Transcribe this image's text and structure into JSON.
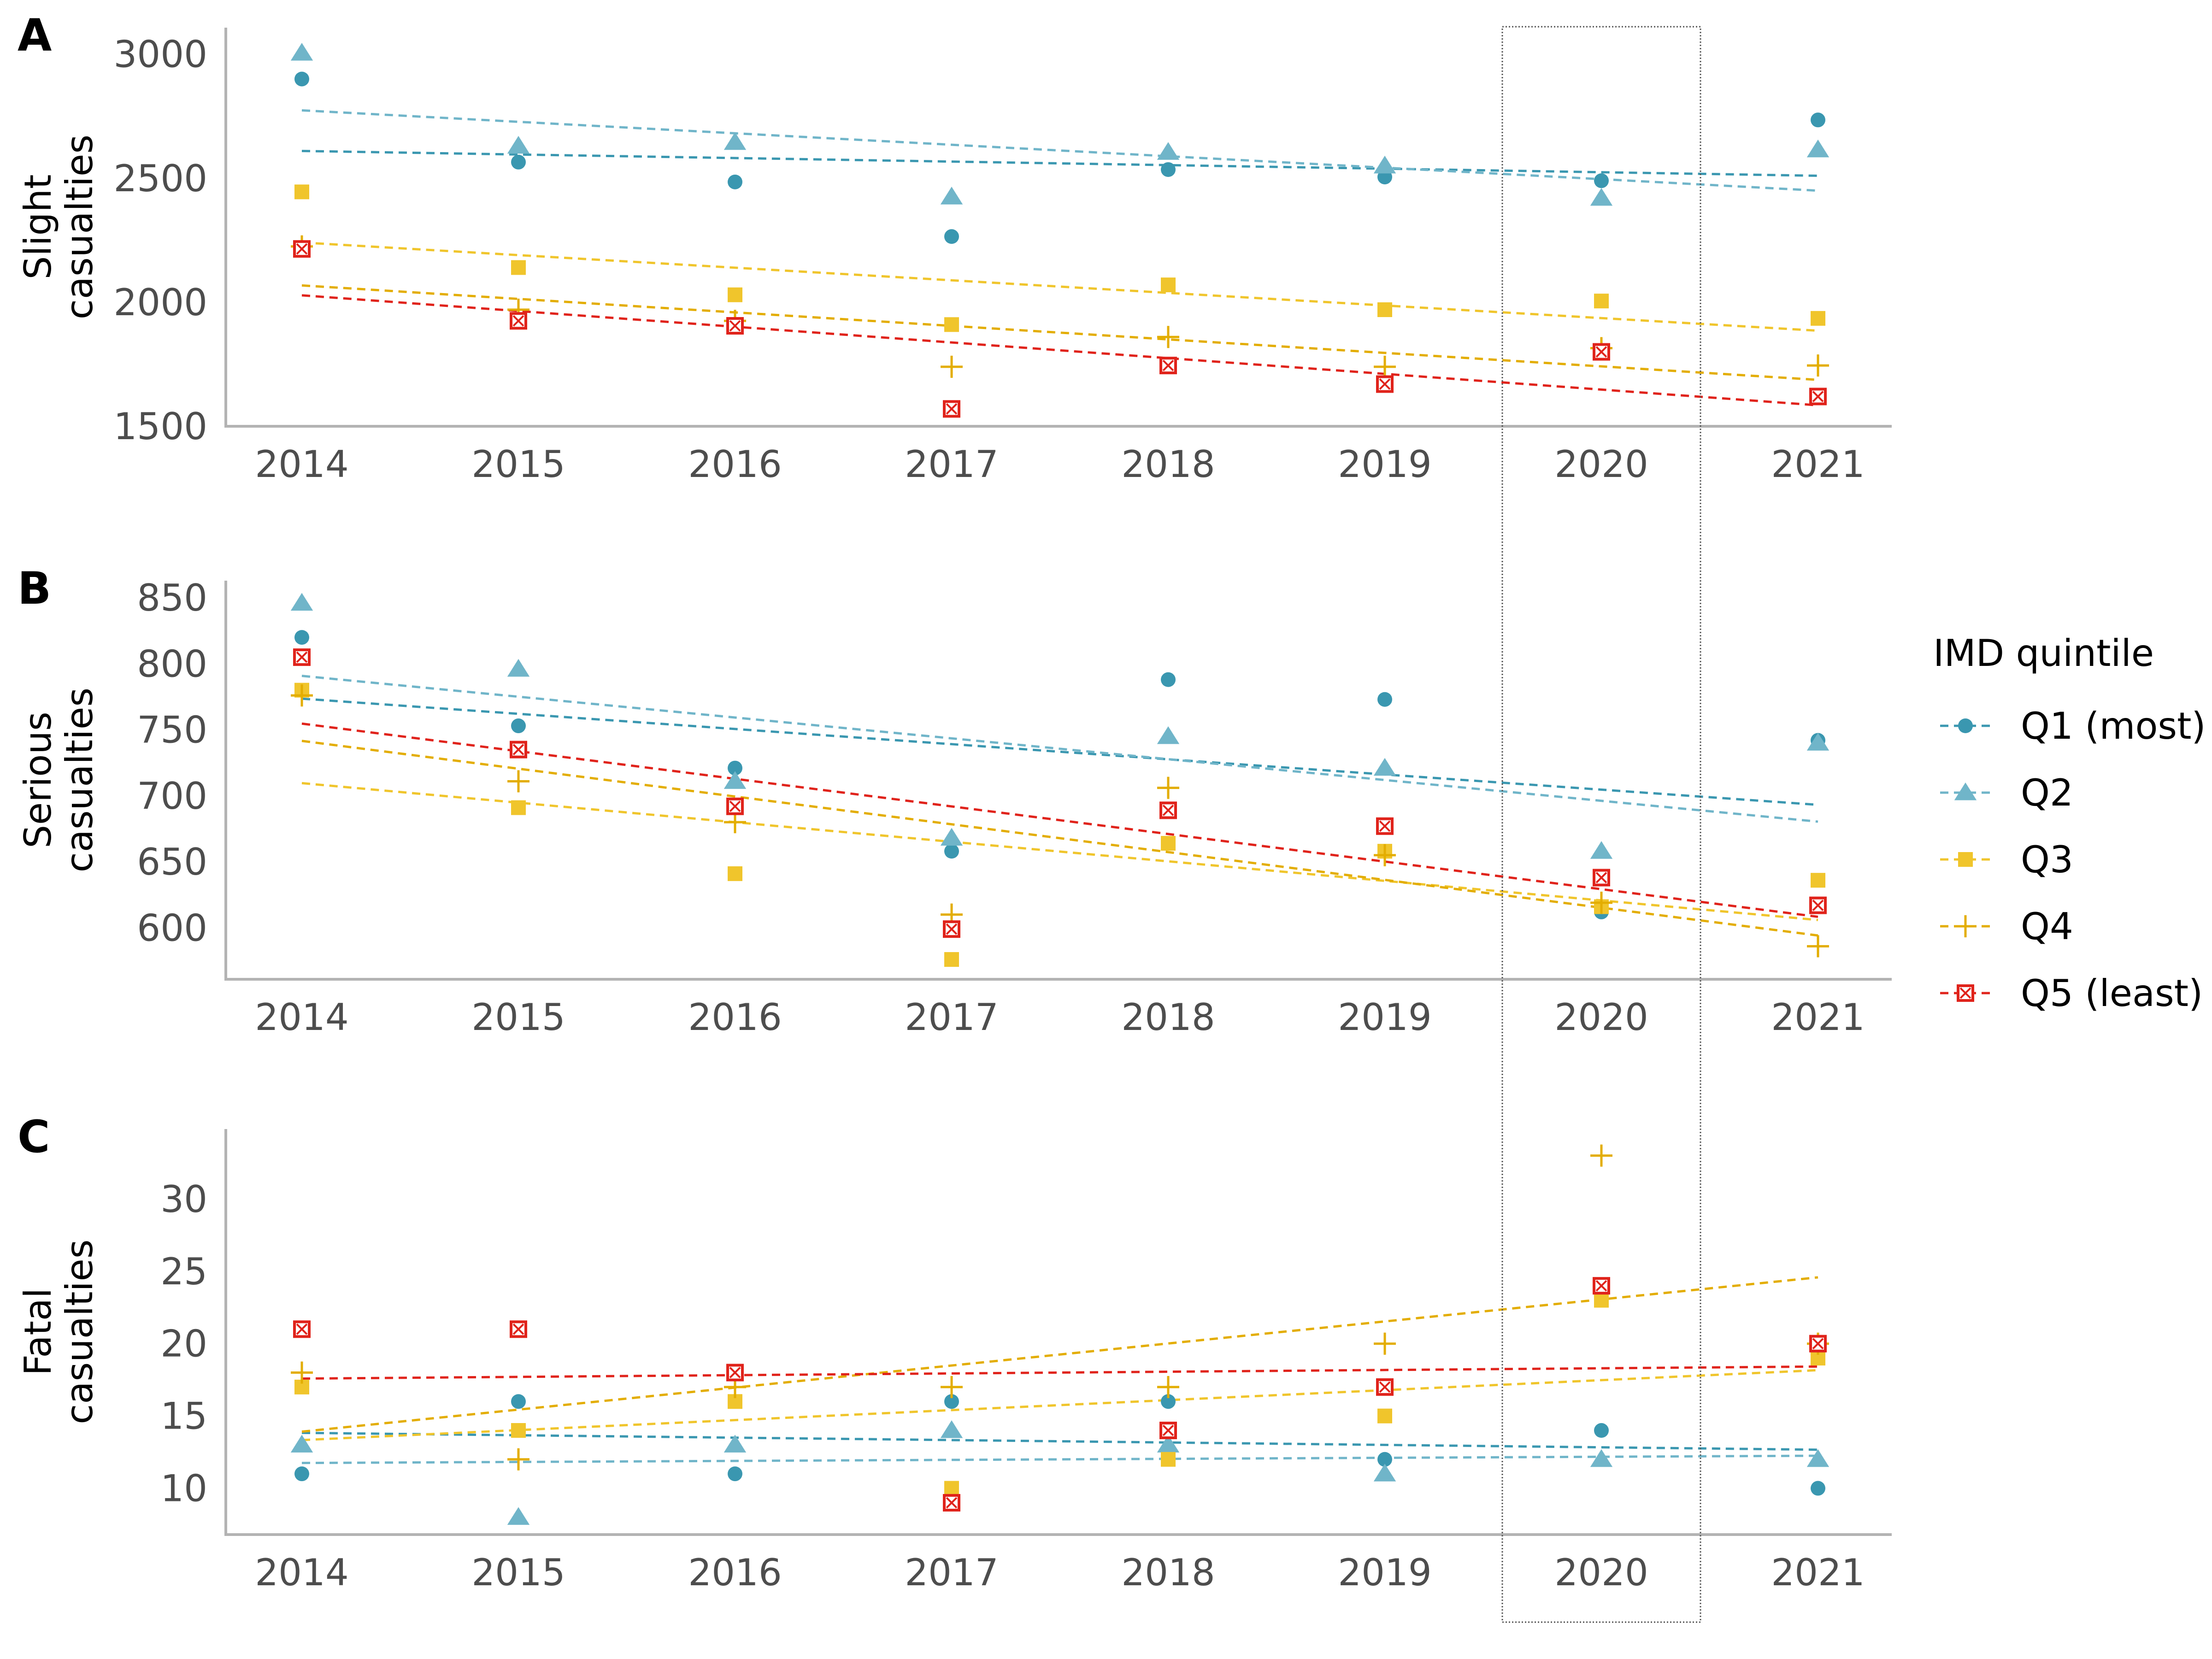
{
  "colors": {
    "Q1": "#3a97b0",
    "Q2": "#70b5c9",
    "Q3": "#f0c52c",
    "Q4": "#e3ad00",
    "Q5": "#e0231b",
    "axis": "#b3b3b3"
  },
  "legend": {
    "title": "IMD quintile",
    "placement": "right",
    "entries": [
      {
        "key": "Q1",
        "label": "Q1 (most)",
        "shape": "circle"
      },
      {
        "key": "Q2",
        "label": "Q2",
        "shape": "triangle"
      },
      {
        "key": "Q3",
        "label": "Q3",
        "shape": "square"
      },
      {
        "key": "Q4",
        "label": "Q4",
        "shape": "plus"
      },
      {
        "key": "Q5",
        "label": "Q5 (least)",
        "shape": "boxed-x"
      }
    ]
  },
  "highlight": {
    "year": 2020,
    "style": "dotted box spanning all panels"
  },
  "chart_data": [
    {
      "type": "scatter",
      "panel": "A",
      "ylabel": [
        "Slight",
        "casualties"
      ],
      "xticks": [
        "2014",
        "2015",
        "2016",
        "2017",
        "2018",
        "2019",
        "2020",
        "2021"
      ],
      "yticks": [
        "1500",
        "2000",
        "2500",
        "3000"
      ],
      "ylim": [
        1500,
        3070
      ],
      "x": [
        2014,
        2015,
        2016,
        2017,
        2018,
        2019,
        2020,
        2021
      ],
      "trendline": "linear, dashed",
      "series": [
        {
          "key": "Q1",
          "values": [
            2900,
            2565,
            2485,
            2265,
            2535,
            2505,
            2490,
            2735
          ]
        },
        {
          "key": "Q2",
          "values": [
            3005,
            2630,
            2645,
            2425,
            2605,
            2550,
            2420,
            2615
          ]
        },
        {
          "key": "Q3",
          "values": [
            2445,
            2140,
            2030,
            1910,
            2070,
            1970,
            2005,
            1935
          ]
        },
        {
          "key": "Q4",
          "values": [
            2225,
            1970,
            1925,
            1740,
            1860,
            1740,
            1815,
            1745
          ]
        },
        {
          "key": "Q5",
          "values": [
            2215,
            1925,
            1905,
            1570,
            1745,
            1670,
            1800,
            1620
          ]
        }
      ]
    },
    {
      "type": "scatter",
      "panel": "B",
      "ylabel": [
        "Serious",
        "casualties"
      ],
      "xticks": [
        "2014",
        "2015",
        "2016",
        "2017",
        "2018",
        "2019",
        "2020",
        "2021"
      ],
      "yticks": [
        "600",
        "650",
        "700",
        "750",
        "800",
        "850"
      ],
      "ylim": [
        561,
        856
      ],
      "x": [
        2014,
        2015,
        2016,
        2017,
        2018,
        2019,
        2020,
        2021
      ],
      "trendline": "linear, dashed",
      "series": [
        {
          "key": "Q1",
          "values": [
            820,
            753,
            721,
            658,
            788,
            773,
            612,
            742
          ]
        },
        {
          "key": "Q2",
          "values": [
            846,
            796,
            711,
            668,
            745,
            721,
            658,
            740
          ]
        },
        {
          "key": "Q3",
          "values": [
            780,
            691,
            641,
            576,
            664,
            658,
            616,
            636
          ]
        },
        {
          "key": "Q4",
          "values": [
            776,
            711,
            680,
            610,
            706,
            655,
            619,
            586
          ]
        },
        {
          "key": "Q5",
          "values": [
            805,
            735,
            692,
            599,
            689,
            677,
            638,
            617
          ]
        }
      ]
    },
    {
      "type": "scatter",
      "panel": "C",
      "ylabel": [
        "Fatal",
        "casualties"
      ],
      "xticks": [
        "2014",
        "2015",
        "2016",
        "2017",
        "2018",
        "2019",
        "2020",
        "2021"
      ],
      "yticks": [
        "10",
        "15",
        "20",
        "25",
        "30"
      ],
      "ylim": [
        6.8,
        34.2
      ],
      "x": [
        2014,
        2015,
        2016,
        2017,
        2018,
        2019,
        2020,
        2021
      ],
      "trendline": "linear, dashed",
      "series": [
        {
          "key": "Q1",
          "values": [
            11,
            16,
            11,
            16,
            16,
            12,
            14,
            10
          ]
        },
        {
          "key": "Q2",
          "values": [
            13,
            8,
            13,
            14,
            13,
            11,
            12,
            12
          ]
        },
        {
          "key": "Q3",
          "values": [
            17,
            14,
            16,
            10,
            12,
            15,
            23,
            19
          ]
        },
        {
          "key": "Q4",
          "values": [
            18,
            12,
            17,
            17,
            17,
            20,
            33,
            20
          ]
        },
        {
          "key": "Q5",
          "values": [
            21,
            21,
            18,
            9,
            14,
            17,
            24,
            20
          ]
        }
      ]
    }
  ]
}
